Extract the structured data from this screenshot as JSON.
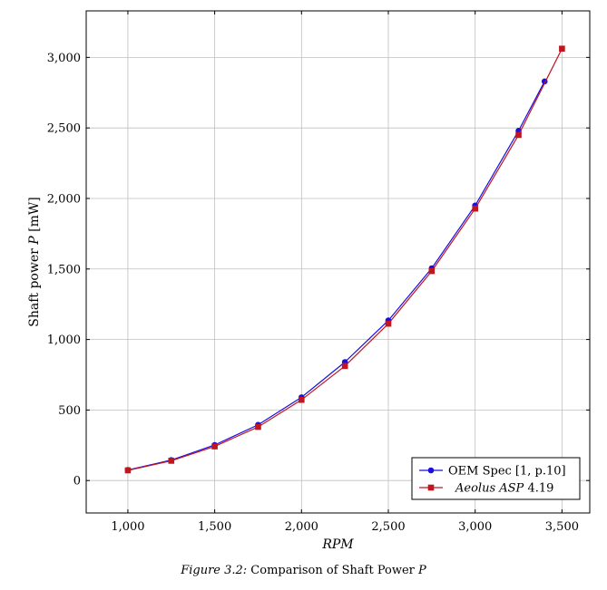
{
  "chart_data": {
    "type": "line",
    "xlabel": "RPM",
    "ylabel_main": "Shaft power",
    "ylabel_var": "P",
    "ylabel_unit": "[mW]",
    "xlim": [
      760,
      3660
    ],
    "ylim": [
      -230,
      3330
    ],
    "xticks": [
      1000,
      1500,
      2000,
      2500,
      3000,
      3500
    ],
    "xtick_labels": [
      "1,000",
      "1,500",
      "2,000",
      "2,500",
      "3,000",
      "3,500"
    ],
    "yticks": [
      0,
      500,
      1000,
      1500,
      2000,
      2500,
      3000
    ],
    "ytick_labels": [
      "0",
      "500",
      "1,000",
      "1,500",
      "2,000",
      "2,500",
      "3,000"
    ],
    "grid": true,
    "legend_position": "bottom-right",
    "series": [
      {
        "name": "OEM Spec [1, p.10]",
        "color": "#1a0fe0",
        "marker": "circle",
        "x": [
          1000,
          1250,
          1500,
          1750,
          2000,
          2250,
          2500,
          2750,
          3000,
          3250,
          3400
        ],
        "y": [
          75,
          145,
          252,
          395,
          590,
          840,
          1135,
          1505,
          1950,
          2480,
          2830
        ]
      },
      {
        "name_italic": "Aeolus ASP",
        "name_version": "4.19",
        "color": "#c0161e",
        "marker": "square",
        "x": [
          1000,
          1250,
          1500,
          1750,
          2000,
          2250,
          2500,
          2750,
          3000,
          3250,
          3500
        ],
        "y": [
          72,
          140,
          242,
          380,
          572,
          812,
          1112,
          1485,
          1928,
          2450,
          3062
        ]
      }
    ]
  },
  "caption": {
    "label": "Figure 3.2:",
    "text": " Comparison of Shaft Power ",
    "var": "P"
  }
}
